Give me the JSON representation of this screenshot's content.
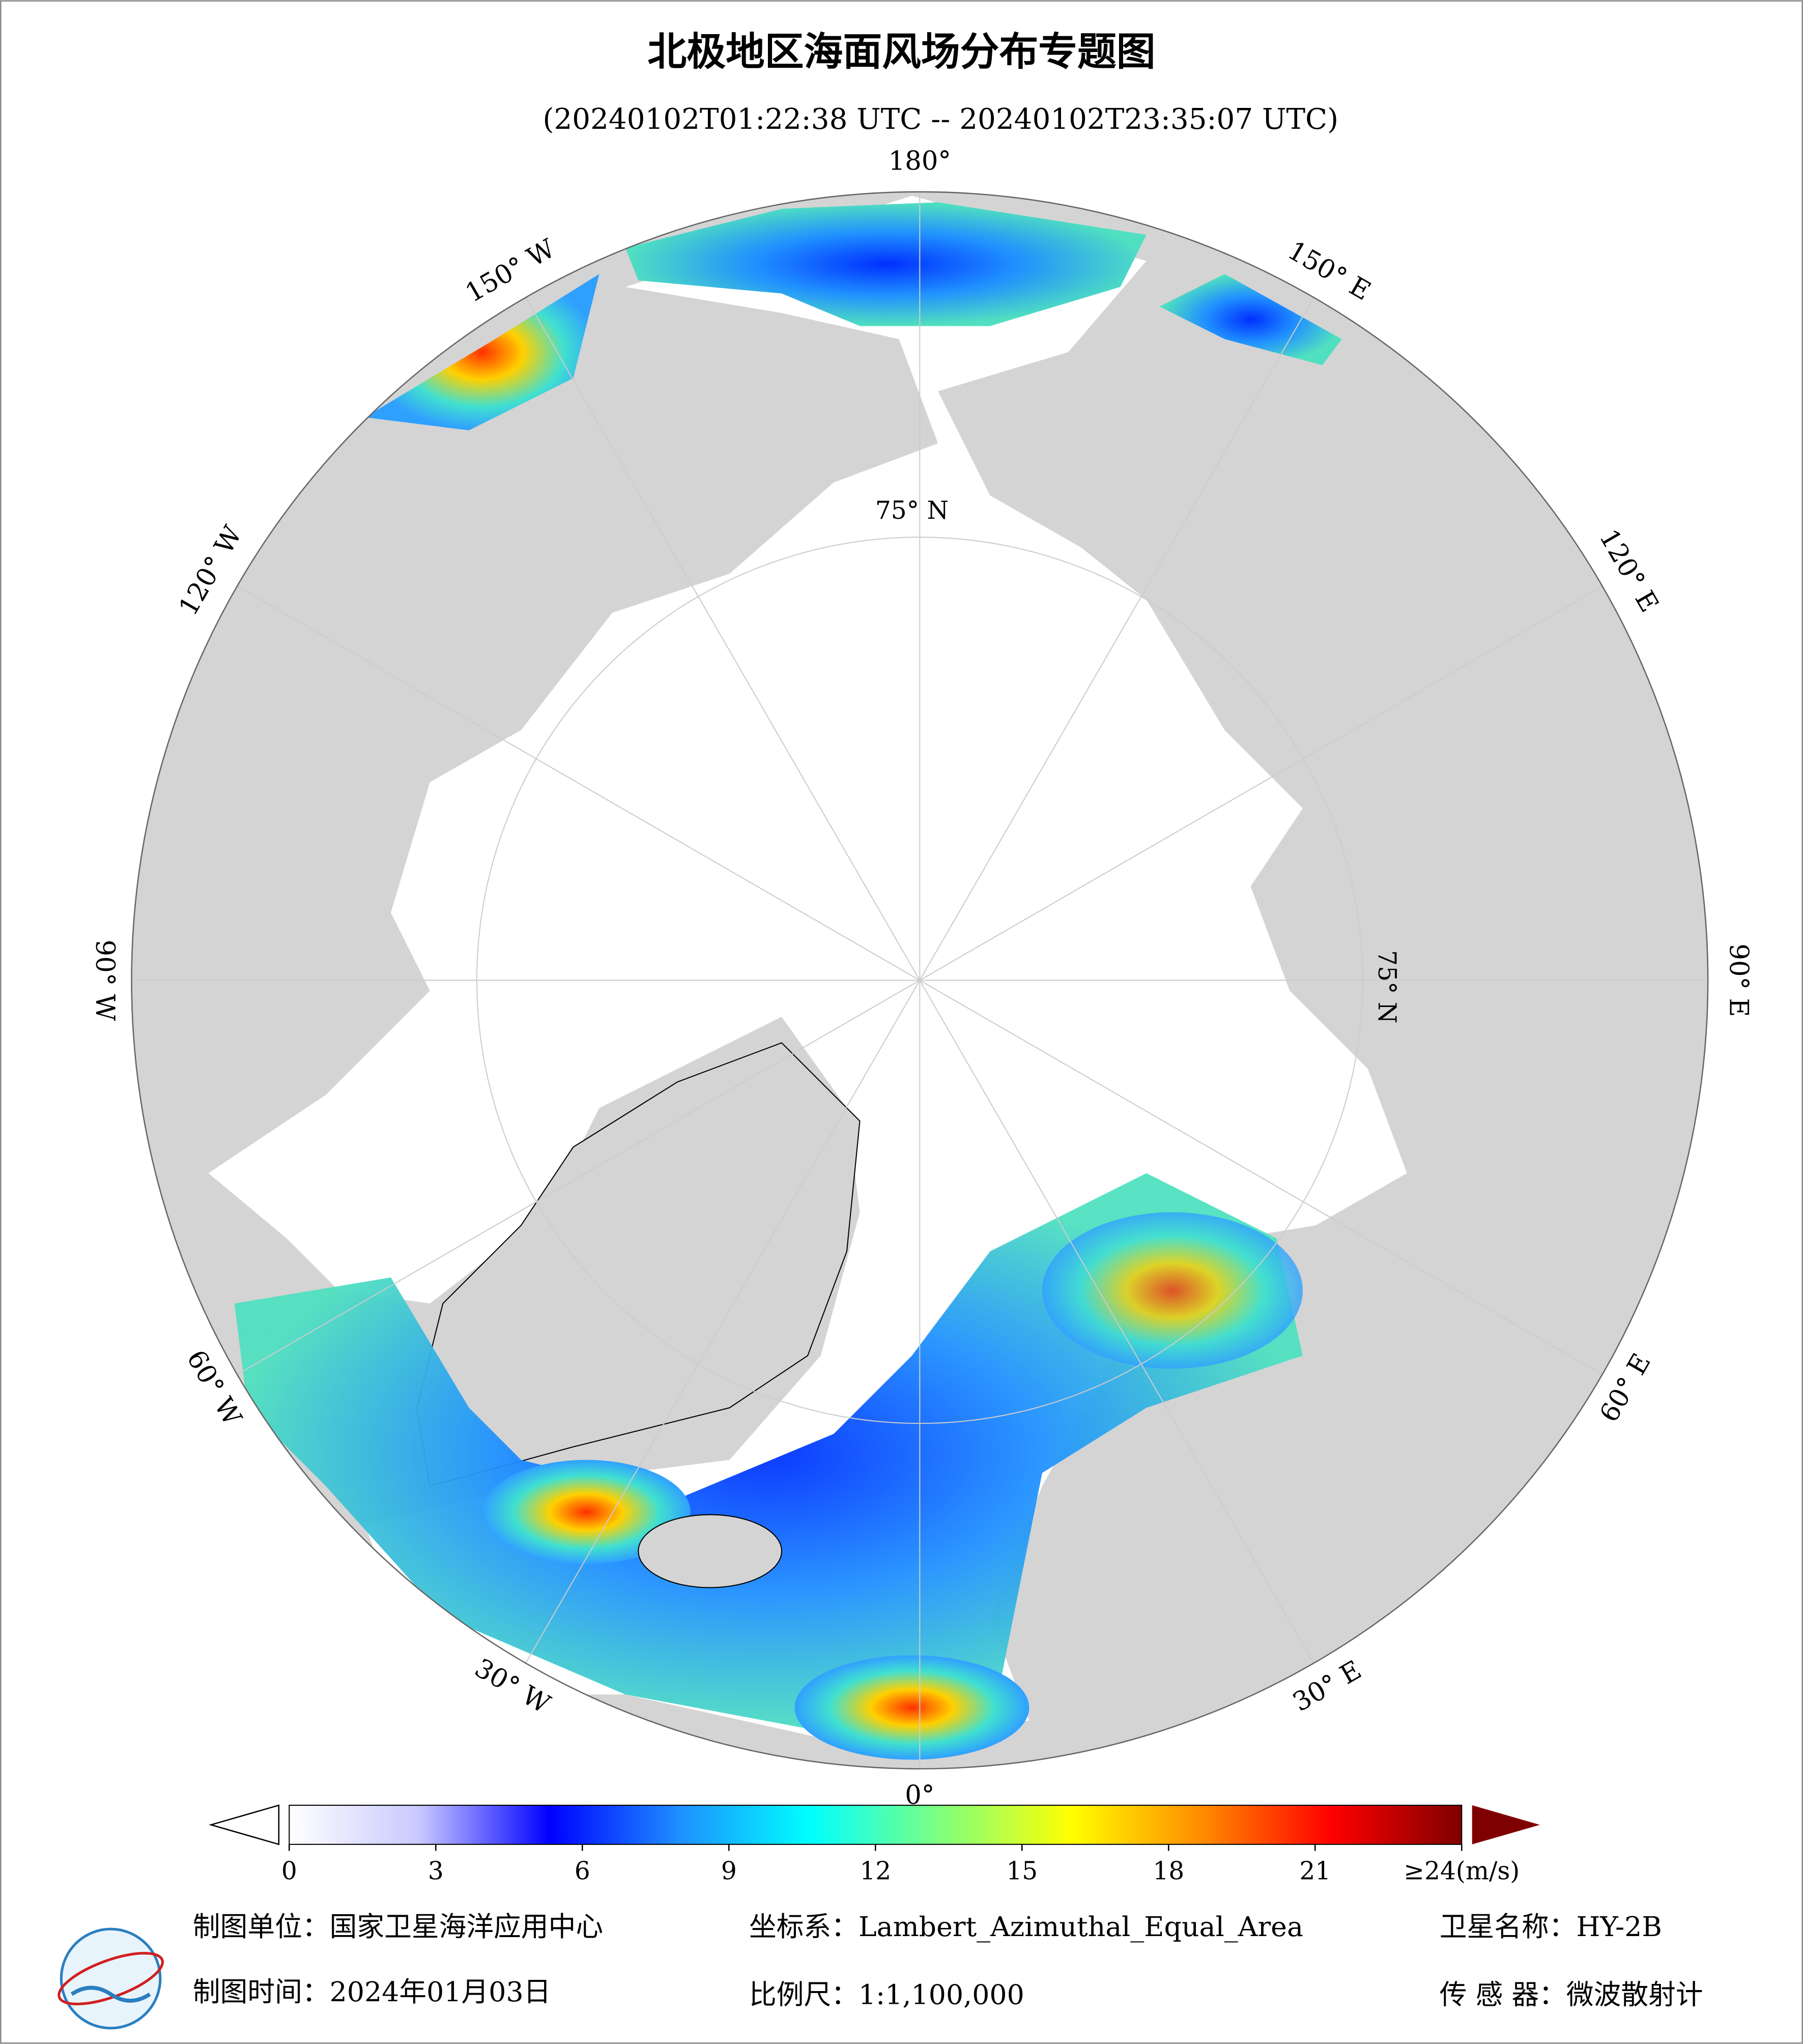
{
  "title": "北极地区海面风场分布专题图",
  "subtitle": "(20240102T01:22:38 UTC -- 20240102T23:35:07 UTC)",
  "map": {
    "longitude_labels": [
      "180°",
      "150° E",
      "120° E",
      "90° E",
      "60° E",
      "30° E",
      "0°",
      "30° W",
      "60° W",
      "90° W",
      "120° W",
      "150° W"
    ],
    "latitude_label": "75° N"
  },
  "colorbar": {
    "range": [
      0,
      24
    ],
    "colors": [
      "#ffffff",
      "#c8c8ff",
      "#0000ff",
      "#1e90ff",
      "#00ffff",
      "#7fff7f",
      "#ffff00",
      "#ff8c00",
      "#ff0000",
      "#7f0000"
    ],
    "ticks": [
      0,
      3,
      6,
      9,
      12,
      15,
      18,
      21,
      {
        "value": 24,
        "label": "≥24(m/s)"
      }
    ]
  },
  "footer": {
    "unit": "制图单位：国家卫星海洋应用中心",
    "coordinate_system": "坐标系：Lambert_Azimuthal_Equal_Area",
    "satellite": "卫星名称：HY-2B",
    "date": "制图时间：2024年01月03日",
    "scale": "比例尺：1:1,100,000",
    "sensor": "传 感 器：微波散射计"
  }
}
